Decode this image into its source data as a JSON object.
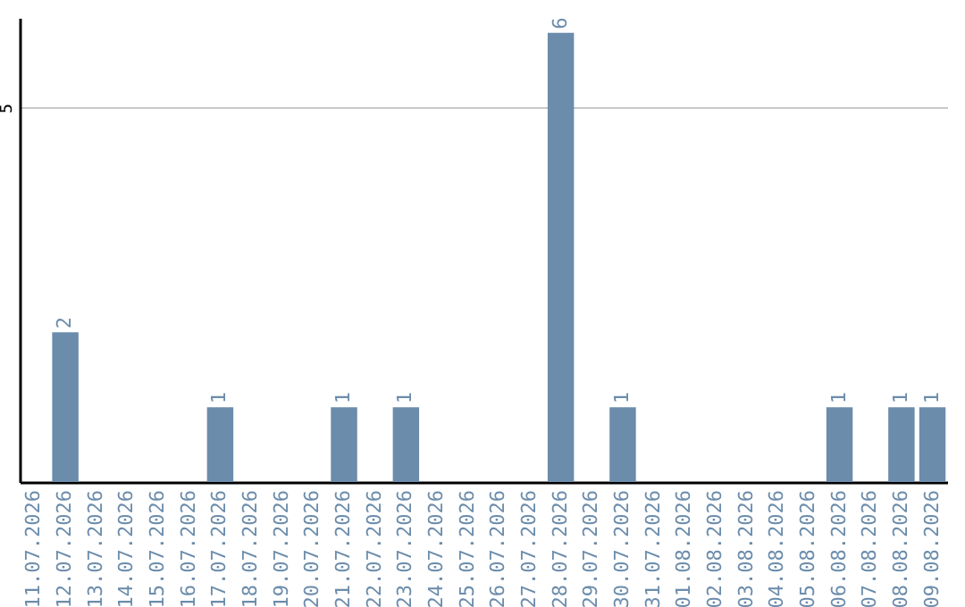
{
  "chart_data": {
    "type": "bar",
    "categories": [
      "11.07.2026",
      "12.07.2026",
      "13.07.2026",
      "14.07.2026",
      "15.07.2026",
      "16.07.2026",
      "17.07.2026",
      "18.07.2026",
      "19.07.2026",
      "20.07.2026",
      "21.07.2026",
      "22.07.2026",
      "23.07.2026",
      "24.07.2026",
      "25.07.2026",
      "26.07.2026",
      "27.07.2026",
      "28.07.2026",
      "29.07.2026",
      "30.07.2026",
      "31.07.2026",
      "01.08.2026",
      "02.08.2026",
      "03.08.2026",
      "04.08.2026",
      "05.08.2026",
      "06.08.2026",
      "07.08.2026",
      "08.08.2026",
      "09.08.2026"
    ],
    "values": [
      0,
      2,
      0,
      0,
      0,
      0,
      1,
      0,
      0,
      0,
      1,
      0,
      1,
      0,
      0,
      0,
      0,
      6,
      0,
      1,
      0,
      0,
      0,
      0,
      0,
      0,
      1,
      0,
      1,
      1
    ],
    "value_labels": [
      null,
      "2",
      null,
      null,
      null,
      null,
      "1",
      null,
      null,
      null,
      "1",
      null,
      "1",
      null,
      null,
      null,
      null,
      "6",
      null,
      "1",
      null,
      null,
      null,
      null,
      null,
      null,
      "1",
      null,
      "1",
      "1"
    ],
    "color": "#6b8cab",
    "ylim": [
      0,
      6.2
    ],
    "yticks": [
      5
    ],
    "grid": "y"
  }
}
